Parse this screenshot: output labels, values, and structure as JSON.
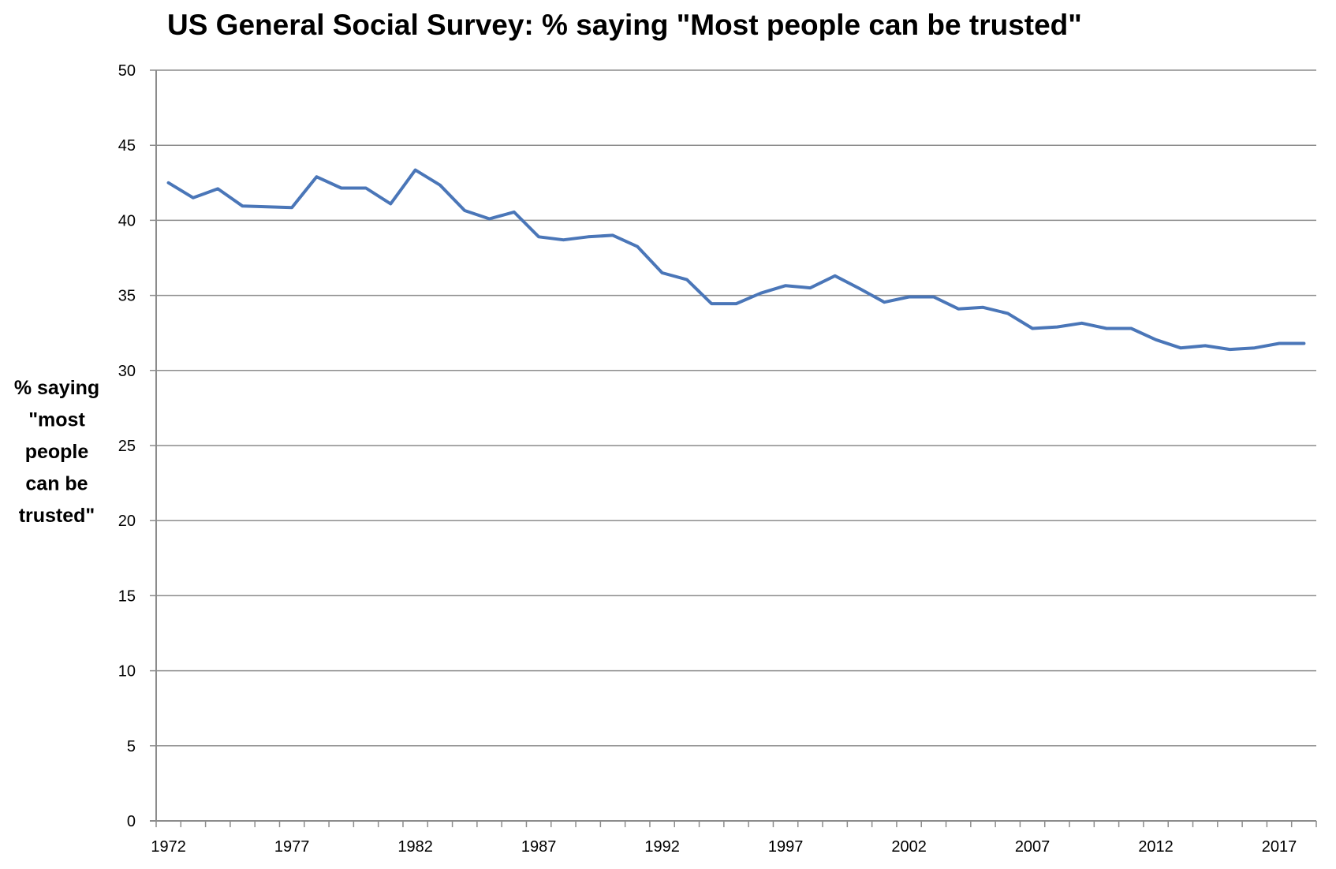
{
  "chart_data": {
    "type": "line",
    "title": "US General Social Survey: % saying \"Most people can be trusted\"",
    "xlabel": "",
    "ylabel_lines": [
      "% saying",
      "\"most",
      "people",
      "can be",
      "trusted\""
    ],
    "ylabel": "% saying \"most people can be trusted\"",
    "ylim": [
      0,
      50
    ],
    "yticks": [
      0,
      5,
      10,
      15,
      20,
      25,
      30,
      35,
      40,
      45,
      50
    ],
    "xtick_labels": [
      "1972",
      "1977",
      "1982",
      "1987",
      "1992",
      "1997",
      "2002",
      "2007",
      "2012",
      "2017"
    ],
    "grid": true,
    "legend": "none",
    "x": [
      1972,
      1973,
      1974,
      1975,
      1976,
      1977,
      1978,
      1979,
      1980,
      1981,
      1982,
      1983,
      1984,
      1985,
      1986,
      1987,
      1988,
      1989,
      1990,
      1991,
      1992,
      1993,
      1994,
      1995,
      1996,
      1997,
      1998,
      1999,
      2000,
      2001,
      2002,
      2003,
      2004,
      2005,
      2006,
      2007,
      2008,
      2009,
      2010,
      2011,
      2012,
      2013,
      2014,
      2015,
      2016,
      2017,
      2018
    ],
    "series": [
      {
        "name": "% saying most people can be trusted",
        "color": "#4a76b8",
        "values": [
          42.5,
          41.5,
          42.1,
          40.95,
          40.9,
          40.85,
          42.9,
          42.15,
          42.15,
          41.1,
          43.35,
          42.35,
          40.65,
          40.1,
          40.55,
          38.9,
          38.7,
          38.9,
          39.0,
          38.25,
          36.5,
          36.05,
          34.45,
          34.45,
          35.15,
          35.65,
          35.5,
          36.3,
          35.45,
          34.55,
          34.9,
          34.9,
          34.1,
          34.2,
          33.8,
          32.8,
          32.9,
          33.15,
          32.8,
          32.8,
          32.05,
          31.5,
          31.65,
          31.4,
          31.5,
          31.8,
          31.8
        ]
      }
    ]
  }
}
